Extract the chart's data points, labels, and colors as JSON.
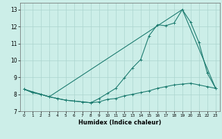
{
  "xlabel": "Humidex (Indice chaleur)",
  "bg_color": "#cceee8",
  "grid_color": "#aad4ce",
  "line_color": "#1a7a6e",
  "xlim": [
    -0.5,
    23.5
  ],
  "ylim": [
    7.0,
    13.4
  ],
  "xticks": [
    0,
    1,
    2,
    3,
    4,
    5,
    6,
    7,
    8,
    9,
    10,
    11,
    12,
    13,
    14,
    15,
    16,
    17,
    18,
    19,
    20,
    21,
    22,
    23
  ],
  "yticks": [
    7,
    8,
    9,
    10,
    11,
    12,
    13
  ],
  "series1_x": [
    0,
    1,
    2,
    3,
    4,
    5,
    6,
    7,
    8,
    9,
    10,
    11,
    12,
    13,
    14,
    15,
    16,
    17,
    18,
    19,
    20,
    21,
    22,
    23
  ],
  "series1_y": [
    8.3,
    8.1,
    8.0,
    7.85,
    7.75,
    7.65,
    7.6,
    7.55,
    7.5,
    7.55,
    7.7,
    7.75,
    7.9,
    8.0,
    8.1,
    8.2,
    8.35,
    8.45,
    8.55,
    8.6,
    8.65,
    8.55,
    8.45,
    8.35
  ],
  "series2_x": [
    0,
    1,
    2,
    3,
    4,
    5,
    6,
    7,
    8,
    9,
    10,
    11,
    12,
    13,
    14,
    15,
    16,
    17,
    18,
    19,
    20,
    21,
    22,
    23
  ],
  "series2_y": [
    8.3,
    8.1,
    8.0,
    7.85,
    7.75,
    7.65,
    7.6,
    7.55,
    7.5,
    7.75,
    8.05,
    8.35,
    8.95,
    9.55,
    10.05,
    11.45,
    12.1,
    12.05,
    12.2,
    13.0,
    12.25,
    11.05,
    9.25,
    8.35
  ],
  "series3_x": [
    0,
    3,
    19,
    23
  ],
  "series3_y": [
    8.3,
    7.85,
    13.0,
    8.35
  ]
}
